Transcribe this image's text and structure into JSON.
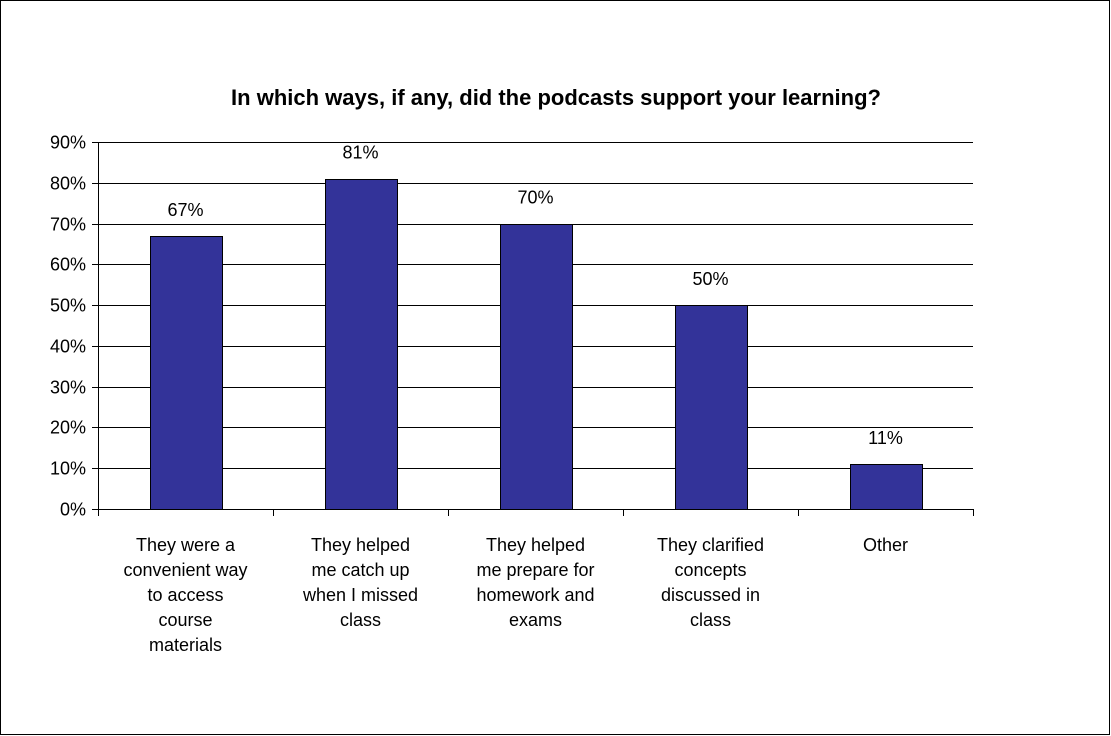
{
  "chart_data": {
    "type": "bar",
    "title": "In which ways, if any, did the podcasts support your learning?",
    "xlabel": "",
    "ylabel": "",
    "ylim": [
      0,
      90
    ],
    "y_ticks": [
      "0%",
      "10%",
      "20%",
      "30%",
      "40%",
      "50%",
      "60%",
      "70%",
      "80%",
      "90%"
    ],
    "grid": true,
    "legend": "none",
    "categories": [
      "They were a\nconvenient way\nto access\ncourse\nmaterials",
      "They helped\nme catch up\nwhen I missed\nclass",
      "They helped\nme prepare for\nhomework and\nexams",
      "They clarified\nconcepts\ndiscussed in\nclass",
      "Other"
    ],
    "values": [
      67,
      81,
      70,
      50,
      11
    ],
    "data_labels": [
      "67%",
      "81%",
      "70%",
      "50%",
      "11%"
    ],
    "bar_color": "#333399",
    "bar_edge_color": "#000000"
  }
}
